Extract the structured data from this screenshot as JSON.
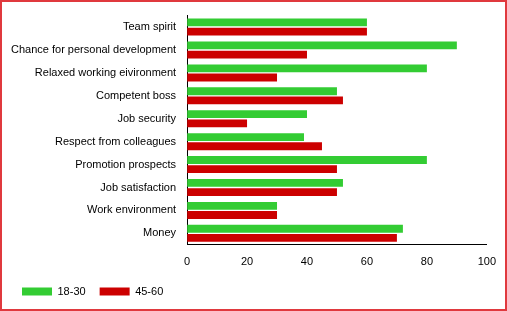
{
  "chart_data": {
    "type": "bar",
    "orientation": "horizontal",
    "categories": [
      "Team spirit",
      "Chance for personal development",
      "Relaxed working eivironment",
      "Competent boss",
      "Job security",
      "Respect from colleagues",
      "Promotion prospects",
      "Job satisfaction",
      "Work environment",
      "Money"
    ],
    "series": [
      {
        "name": "18-30",
        "color": "#33cc33",
        "values": [
          60,
          90,
          80,
          50,
          40,
          39,
          80,
          52,
          30,
          72
        ]
      },
      {
        "name": "45-60",
        "color": "#cc0000",
        "values": [
          60,
          40,
          30,
          52,
          20,
          45,
          50,
          50,
          30,
          70
        ]
      }
    ],
    "xlim": [
      0,
      100
    ],
    "xticks": [
      0,
      20,
      40,
      60,
      80,
      100
    ],
    "grid": false,
    "legend": "bottom"
  }
}
